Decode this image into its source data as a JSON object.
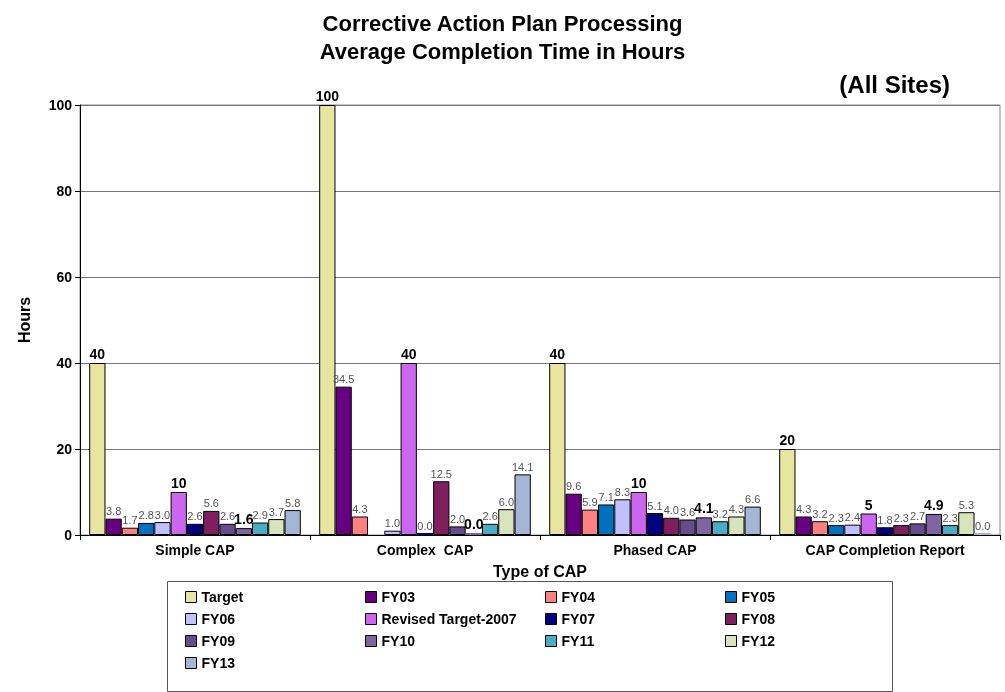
{
  "chart_data": {
    "type": "bar",
    "title": "Corrective Action Plan Processing\nAverage Completion Time in Hours",
    "annotations": [
      "(All Sites)"
    ],
    "xlabel": "Type of CAP",
    "ylabel": "Hours",
    "categories": [
      "Simple CAP",
      "Complex  CAP",
      "Phased CAP",
      "CAP Completion Report"
    ],
    "ylim": [
      0,
      100
    ],
    "yticks": [
      0,
      20,
      40,
      60,
      80,
      100
    ],
    "grid": "y",
    "legend": "bottom",
    "series": [
      {
        "name": "Target",
        "color": "#e6e6a0",
        "values": [
          40,
          100,
          40,
          20
        ],
        "value_labels": [
          "40",
          "100",
          "40",
          "20"
        ]
      },
      {
        "name": "FY03",
        "color": "#660080",
        "values": [
          3.8,
          34.5,
          9.6,
          4.3
        ],
        "value_labels": [
          "3.8",
          "34.5",
          "9.6",
          "4.3"
        ]
      },
      {
        "name": "FY04",
        "color": "#ff8080",
        "values": [
          1.7,
          4.3,
          5.9,
          3.2
        ],
        "value_labels": [
          "1.7",
          "4.3",
          "5.9",
          "3.2"
        ]
      },
      {
        "name": "FY05",
        "color": "#0070c0",
        "values": [
          2.8,
          null,
          7.1,
          2.3
        ],
        "value_labels": [
          "2.8",
          null,
          "7.1",
          "2.3"
        ]
      },
      {
        "name": "FY06",
        "color": "#c0c0ff",
        "values": [
          3.0,
          1.0,
          8.3,
          2.4
        ],
        "value_labels": [
          "3.0",
          "1.0",
          "8.3",
          "2.4"
        ]
      },
      {
        "name": "Revised Target-2007",
        "color": "#cc66ee",
        "values": [
          10,
          40,
          10,
          5
        ],
        "value_labels": [
          "10",
          "40",
          "10",
          "5"
        ]
      },
      {
        "name": "FY07",
        "color": "#000080",
        "values": [
          2.6,
          0.0,
          5.1,
          1.8
        ],
        "value_labels": [
          "2.6",
          "0.0",
          "5.1",
          "1.8"
        ]
      },
      {
        "name": "FY08",
        "color": "#7f1f5f",
        "values": [
          5.6,
          12.5,
          4.0,
          2.3
        ],
        "value_labels": [
          "5.6",
          "12.5",
          "4.0",
          "2.3"
        ]
      },
      {
        "name": "FY09",
        "color": "#664c8c",
        "values": [
          2.6,
          2.0,
          3.6,
          2.7
        ],
        "value_labels": [
          "2.6",
          "2.0",
          "3.6",
          "2.7"
        ]
      },
      {
        "name": "FY10",
        "color": "#8064a2",
        "values": [
          1.6,
          0.0,
          4.1,
          4.9
        ],
        "value_labels": [
          "1.6",
          "0.0",
          "4.1",
          "4.9"
        ]
      },
      {
        "name": "FY11",
        "color": "#4bacc6",
        "values": [
          2.9,
          2.6,
          3.2,
          2.3
        ],
        "value_labels": [
          "2.9",
          "2.6",
          "3.2",
          "2.3"
        ]
      },
      {
        "name": "FY12",
        "color": "#d7e4bc",
        "values": [
          3.7,
          6.0,
          4.3,
          5.3
        ],
        "value_labels": [
          "3.7",
          "6.0",
          "4.3",
          "5.3"
        ]
      },
      {
        "name": "FY13",
        "color": "#a5b5d5",
        "values": [
          5.8,
          14.1,
          6.6,
          0.0
        ],
        "value_labels": [
          "5.8",
          "14.1",
          "6.6",
          "0.0"
        ]
      }
    ]
  }
}
